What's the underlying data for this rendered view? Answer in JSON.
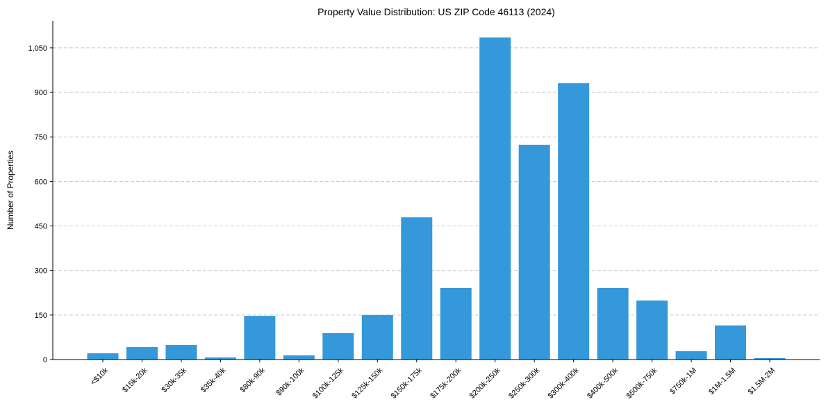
{
  "chart_data": {
    "type": "bar",
    "title": "Property Value Distribution: US ZIP Code 46113 (2024)",
    "xlabel": "",
    "ylabel": "Number of Properties",
    "categories": [
      "<$10k",
      "$15k-20k",
      "$30k-35k",
      "$35k-40k",
      "$80k-90k",
      "$90k-100k",
      "$100k-125k",
      "$125k-150k",
      "$150k-175k",
      "$175k-200k",
      "$200k-250k",
      "$250k-300k",
      "$300k-400k",
      "$400k-500k",
      "$500k-750k",
      "$750k-1M",
      "$1M-1.5M",
      "$1.5M-2M"
    ],
    "values": [
      21,
      42,
      49,
      7,
      147,
      14,
      89,
      150,
      479,
      241,
      1085,
      723,
      931,
      241,
      199,
      28,
      115,
      5
    ],
    "ylim": [
      0,
      1141
    ],
    "yticks": [
      0,
      150,
      300,
      450,
      600,
      750,
      900,
      1050
    ],
    "ytick_labels": [
      "0",
      "150",
      "300",
      "450",
      "600",
      "750",
      "900",
      "1,050"
    ],
    "grid": "y dashed",
    "bar_color": "#3498db"
  }
}
